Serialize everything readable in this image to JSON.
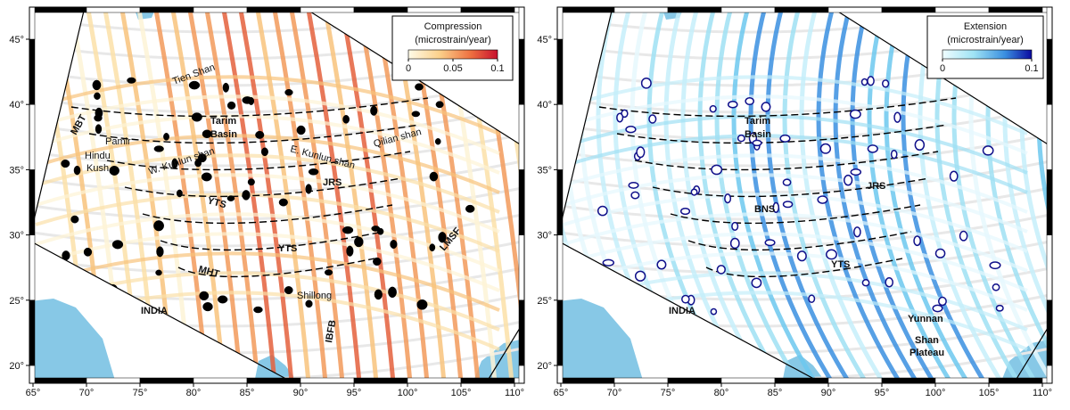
{
  "axes": {
    "lon_labels": [
      "65°",
      "70°",
      "75°",
      "80°",
      "85°",
      "90°",
      "95°",
      "100°",
      "105°",
      "110°"
    ],
    "lat_labels": [
      "20°",
      "25°",
      "30°",
      "35°",
      "40°",
      "45°"
    ]
  },
  "left_panel": {
    "legend": {
      "title": "Compression",
      "unit": "(microstrain/year)",
      "ticks": [
        "0",
        "0.05",
        "0.1"
      ]
    },
    "labels": [
      "Tien Shan",
      "MBT",
      "Pamir",
      "Hindu",
      "Kush",
      "Tarim",
      "Basin",
      "W. Kunlun shan",
      "E. Kunlun shan",
      "Qilian shan",
      "JRS",
      "YTS",
      "YTS",
      "MHT",
      "Shillong",
      "IBFB",
      "LMSF",
      "INDIA"
    ]
  },
  "right_panel": {
    "legend": {
      "title": "Extension",
      "unit": "(microstrain/year)",
      "ticks": [
        "0",
        "0.1"
      ]
    },
    "labels": [
      "Tarim",
      "Basin",
      "JRS",
      "BNS",
      "YTS",
      "INDIA",
      "Yunnan",
      "Shan",
      "Plateau"
    ]
  }
}
